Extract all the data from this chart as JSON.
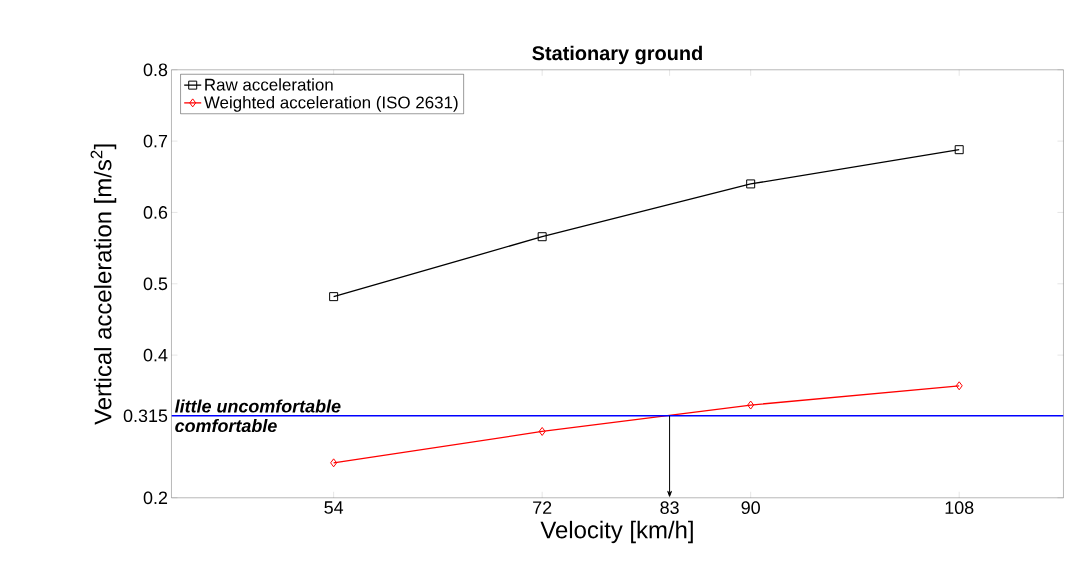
{
  "chart_data": {
    "type": "line",
    "title": "Stationary ground",
    "xlabel": "Velocity [km/h]",
    "ylabel": "Vertical acceleration [m/s$^{2}$]",
    "x": [
      54,
      72,
      90,
      108
    ],
    "series": [
      {
        "name": "Raw acceleration",
        "color": "#000000",
        "marker": "square",
        "values": [
          0.482,
          0.566,
          0.64,
          0.688
        ]
      },
      {
        "name": "Weighted acceleration (ISO 2631)",
        "color": "#ff0000",
        "marker": "diamond",
        "values": [
          0.249,
          0.293,
          0.33,
          0.357
        ]
      }
    ],
    "xlim": [
      40,
      117
    ],
    "ylim": [
      0.2,
      0.8
    ],
    "xticks": [
      54,
      72,
      83,
      90,
      108
    ],
    "yticks": [
      0.2,
      0.315,
      0.4,
      0.5,
      0.6,
      0.7,
      0.8
    ],
    "ref_lines": [
      {
        "axis": "y",
        "value": 0.315,
        "color": "#0000ff"
      }
    ],
    "annotations": [
      "little uncomfortable",
      "comfortable"
    ],
    "grid": false,
    "legend": "top left",
    "line_style": "solid"
  }
}
